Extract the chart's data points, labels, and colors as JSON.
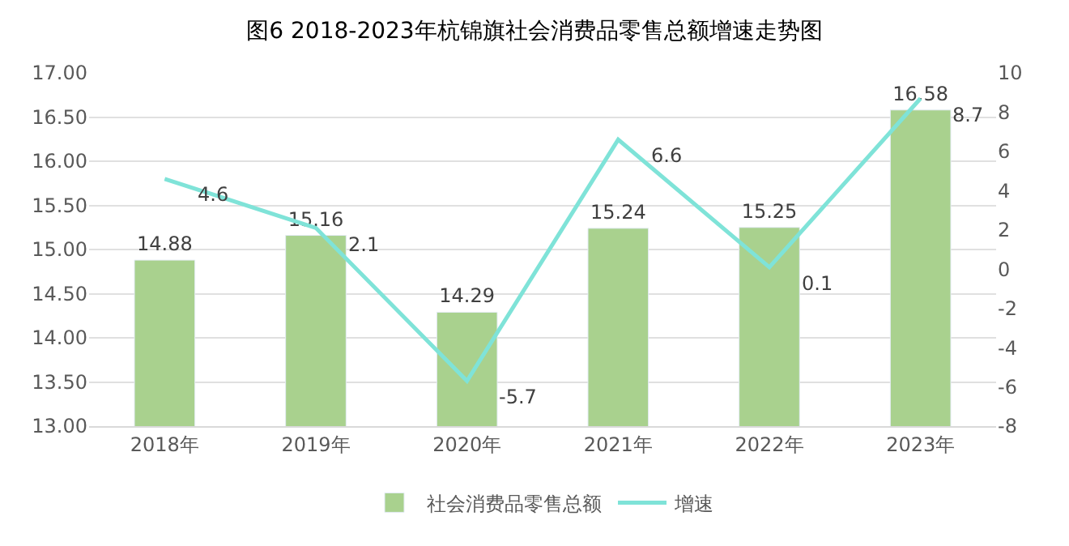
{
  "chart_data": {
    "type": "bar",
    "title": "图6 2018-2023年杭锦旗社会消费品零售总额增速走势图",
    "categories": [
      "2018年",
      "2019年",
      "2020年",
      "2021年",
      "2022年",
      "2023年"
    ],
    "series": [
      {
        "name": "社会消费品零售总额",
        "color": "#a9d18e",
        "values": [
          14.88,
          15.16,
          14.29,
          15.24,
          15.25,
          16.58
        ]
      },
      {
        "name": "增速",
        "type": "line",
        "axis": "y2",
        "color": "#7fe3d8",
        "values": [
          4.6,
          2.1,
          -5.7,
          6.6,
          0.1,
          8.7
        ]
      }
    ],
    "ylim": [
      13,
      17
    ],
    "yticks": [
      {
        "value": 13,
        "label": "13.00"
      },
      {
        "value": 13.5,
        "label": "13.50"
      },
      {
        "value": 14,
        "label": "14.00"
      },
      {
        "value": 14.5,
        "label": "14.50"
      },
      {
        "value": 15,
        "label": "15.00"
      },
      {
        "value": 15.5,
        "label": "15.50"
      },
      {
        "value": 16,
        "label": "16.00"
      },
      {
        "value": 16.5,
        "label": "16.50"
      },
      {
        "value": 17,
        "label": "17.00"
      }
    ],
    "y2lim": [
      -8,
      10
    ],
    "y2ticks": [
      -8,
      -6,
      -4,
      -2,
      0,
      2,
      4,
      6,
      8,
      10
    ],
    "grid": "y",
    "legend": "bottom",
    "data_labels": true,
    "marker": "none",
    "line_style": "solid"
  }
}
